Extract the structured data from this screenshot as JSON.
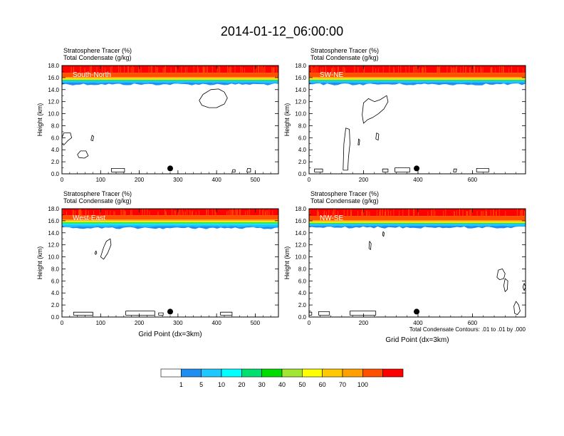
{
  "figure": {
    "title": "2014-01-12_06:00:00",
    "footnote": "Total Condensate Contours: .01 to .01 by .000"
  },
  "panel_labels": {
    "left_title": "Stratosphere Tracer   (%)",
    "right_title": "Total Condensate   (g/kg)"
  },
  "colorbar": {
    "colors": [
      "#ffffff",
      "#1e8ff0",
      "#1ec8ff",
      "#00ffff",
      "#00e070",
      "#00dc00",
      "#a0e632",
      "#ffff00",
      "#ffc800",
      "#ffa000",
      "#ff5000",
      "#ff0000"
    ],
    "labels": [
      "1",
      "5",
      "10",
      "20",
      "30",
      "40",
      "50",
      "60",
      "70",
      "100"
    ]
  },
  "chart_data": [
    {
      "type": "heatmap",
      "title": "South-North",
      "title_lines": [
        "Stratosphere Tracer   (%)",
        "Total Condensate   (g/kg)"
      ],
      "xlabel": "",
      "ylabel": "Height (km)",
      "xlim": [
        0,
        560
      ],
      "ylim": [
        0,
        18
      ],
      "xticks": [
        0,
        100,
        200,
        300,
        400,
        500
      ],
      "yticks": [
        0.0,
        2.0,
        4.0,
        6.0,
        8.0,
        10.0,
        12.0,
        14.0,
        16.0,
        18.0
      ],
      "ytick_labels": [
        "0.0",
        "2.0",
        "4.0",
        "6.0",
        "8.0",
        "10.0",
        "12.0",
        "14.0",
        "16.0",
        "18.0"
      ],
      "tracer_top_km": 15.9,
      "tracer_base_km": 15.2,
      "marker": {
        "x": 280,
        "y": 0.9
      },
      "contours": [
        [
          [
            355,
            12.2
          ],
          [
            365,
            13.2
          ],
          [
            385,
            14.0
          ],
          [
            405,
            14.1
          ],
          [
            420,
            13.6
          ],
          [
            428,
            12.6
          ],
          [
            420,
            11.6
          ],
          [
            400,
            11.0
          ],
          [
            380,
            11.0
          ],
          [
            362,
            11.4
          ],
          [
            355,
            12.2
          ]
        ],
        [
          [
            0,
            6.0
          ],
          [
            5,
            6.8
          ],
          [
            22,
            6.8
          ],
          [
            25,
            6.0
          ],
          [
            15,
            5.5
          ],
          [
            5,
            4.8
          ],
          [
            0,
            5.0
          ]
        ],
        [
          [
            40,
            3.2
          ],
          [
            48,
            3.8
          ],
          [
            62,
            3.8
          ],
          [
            68,
            3.0
          ],
          [
            58,
            2.6
          ],
          [
            44,
            2.7
          ],
          [
            40,
            3.2
          ]
        ],
        [
          [
            75,
            5.6
          ],
          [
            78,
            6.4
          ],
          [
            82,
            6.2
          ],
          [
            80,
            5.5
          ],
          [
            75,
            5.6
          ]
        ],
        [
          [
            128,
            0.3
          ],
          [
            128,
            0.9
          ],
          [
            162,
            0.9
          ],
          [
            162,
            0.3
          ],
          [
            128,
            0.3
          ]
        ],
        [
          [
            440,
            0.3
          ],
          [
            442,
            0.7
          ],
          [
            448,
            0.7
          ],
          [
            448,
            0.3
          ],
          [
            440,
            0.3
          ]
        ],
        [
          [
            478,
            0.3
          ],
          [
            480,
            0.9
          ],
          [
            488,
            0.9
          ],
          [
            488,
            0.3
          ],
          [
            478,
            0.3
          ]
        ]
      ]
    },
    {
      "type": "heatmap",
      "title": "SW-NE",
      "title_lines": [
        "Stratosphere Tracer   (%)",
        "Total Condensate   (g/kg)"
      ],
      "xlabel": "",
      "ylabel": "Height (km)",
      "xlim": [
        0,
        795
      ],
      "ylim": [
        0,
        18
      ],
      "xticks": [
        0,
        200,
        400,
        600
      ],
      "yticks": [
        0.0,
        2.0,
        4.0,
        6.0,
        8.0,
        10.0,
        12.0,
        14.0,
        16.0,
        18.0
      ],
      "ytick_labels": [
        "0.0",
        "2.0",
        "4.0",
        "6.0",
        "8.0",
        "10.0",
        "12.0",
        "14.0",
        "16.0",
        "18.0"
      ],
      "tracer_top_km": 15.9,
      "tracer_base_km": 15.2,
      "marker": {
        "x": 395,
        "y": 0.9
      },
      "contours": [
        [
          [
            195,
            9.8
          ],
          [
            200,
            11.8
          ],
          [
            218,
            12.5
          ],
          [
            240,
            12.0
          ],
          [
            260,
            12.3
          ],
          [
            285,
            13.0
          ],
          [
            290,
            12.0
          ],
          [
            275,
            10.8
          ],
          [
            255,
            10.0
          ],
          [
            235,
            9.4
          ],
          [
            215,
            9.0
          ],
          [
            200,
            8.4
          ],
          [
            195,
            9.8
          ]
        ],
        [
          [
            125,
            0.6
          ],
          [
            128,
            5.0
          ],
          [
            135,
            7.6
          ],
          [
            148,
            7.4
          ],
          [
            150,
            5.0
          ],
          [
            145,
            2.8
          ],
          [
            142,
            0.6
          ],
          [
            125,
            0.6
          ]
        ],
        [
          [
            245,
            5.8
          ],
          [
            248,
            6.8
          ],
          [
            256,
            6.6
          ],
          [
            254,
            5.6
          ],
          [
            245,
            5.8
          ]
        ],
        [
          [
            180,
            4.8
          ],
          [
            182,
            5.8
          ],
          [
            186,
            5.6
          ],
          [
            184,
            4.8
          ],
          [
            180,
            4.8
          ]
        ],
        [
          [
            20,
            0.3
          ],
          [
            20,
            0.8
          ],
          [
            50,
            0.8
          ],
          [
            50,
            0.3
          ],
          [
            20,
            0.3
          ]
        ],
        [
          [
            270,
            0.3
          ],
          [
            270,
            0.8
          ],
          [
            290,
            0.8
          ],
          [
            290,
            0.3
          ],
          [
            270,
            0.3
          ]
        ],
        [
          [
            315,
            0.3
          ],
          [
            315,
            1.0
          ],
          [
            370,
            1.0
          ],
          [
            370,
            0.3
          ],
          [
            315,
            0.3
          ]
        ],
        [
          [
            530,
            0.3
          ],
          [
            532,
            0.8
          ],
          [
            542,
            0.8
          ],
          [
            540,
            0.3
          ],
          [
            530,
            0.3
          ]
        ],
        [
          [
            615,
            0.3
          ],
          [
            615,
            0.9
          ],
          [
            660,
            0.9
          ],
          [
            660,
            0.3
          ],
          [
            615,
            0.3
          ]
        ]
      ]
    },
    {
      "type": "heatmap",
      "title": "West-East",
      "title_lines": [
        "Stratosphere Tracer   (%)",
        "Total Condensate   (g/kg)"
      ],
      "xlabel": "Grid Point (dx=3km)",
      "ylabel": "Height (km)",
      "xlim": [
        0,
        560
      ],
      "ylim": [
        0,
        18
      ],
      "xticks": [
        0,
        100,
        200,
        300,
        400,
        500
      ],
      "yticks": [
        0.0,
        2.0,
        4.0,
        6.0,
        8.0,
        10.0,
        12.0,
        14.0,
        16.0,
        18.0
      ],
      "ytick_labels": [
        "0.0",
        "2.0",
        "4.0",
        "6.0",
        "8.0",
        "10.0",
        "12.0",
        "14.0",
        "16.0",
        "18.0"
      ],
      "tracer_top_km": 16.0,
      "tracer_base_km": 15.1,
      "marker": {
        "x": 280,
        "y": 0.9
      },
      "contours": [
        [
          [
            100,
            10.0
          ],
          [
            108,
            11.6
          ],
          [
            115,
            12.6
          ],
          [
            125,
            13.0
          ],
          [
            127,
            12.0
          ],
          [
            118,
            10.6
          ],
          [
            108,
            9.6
          ],
          [
            100,
            10.0
          ]
        ],
        [
          [
            85,
            10.6
          ],
          [
            88,
            11.0
          ],
          [
            90,
            10.6
          ],
          [
            87,
            10.4
          ],
          [
            85,
            10.6
          ]
        ],
        [
          [
            30,
            0.3
          ],
          [
            30,
            0.8
          ],
          [
            80,
            0.8
          ],
          [
            80,
            0.3
          ],
          [
            30,
            0.3
          ]
        ],
        [
          [
            165,
            0.3
          ],
          [
            165,
            1.0
          ],
          [
            240,
            1.0
          ],
          [
            240,
            0.3
          ],
          [
            165,
            0.3
          ]
        ],
        [
          [
            250,
            0.3
          ],
          [
            250,
            0.7
          ],
          [
            262,
            0.7
          ],
          [
            262,
            0.3
          ],
          [
            250,
            0.3
          ]
        ],
        [
          [
            410,
            0.3
          ],
          [
            410,
            0.8
          ],
          [
            440,
            0.8
          ],
          [
            440,
            0.3
          ],
          [
            410,
            0.3
          ]
        ]
      ]
    },
    {
      "type": "heatmap",
      "title": "NW-SE",
      "title_lines": [
        "Stratosphere Tracer   (%)",
        "Total Condensate   (g/kg)"
      ],
      "xlabel": "Grid Point (dx=3km)",
      "ylabel": "Height (km)",
      "xlim": [
        0,
        795
      ],
      "ylim": [
        0,
        18
      ],
      "xticks": [
        0,
        200,
        400,
        600
      ],
      "yticks": [
        0.0,
        2.0,
        4.0,
        6.0,
        8.0,
        10.0,
        12.0,
        14.0,
        16.0,
        18.0
      ],
      "ytick_labels": [
        "0.0",
        "2.0",
        "4.0",
        "6.0",
        "8.0",
        "10.0",
        "12.0",
        "14.0",
        "16.0",
        "18.0"
      ],
      "tracer_top_km": 15.9,
      "tracer_base_km": 15.2,
      "marker": {
        "x": 395,
        "y": 0.9
      },
      "contours": [
        [
          [
            220,
            11.4
          ],
          [
            222,
            12.6
          ],
          [
            228,
            12.2
          ],
          [
            226,
            11.2
          ],
          [
            220,
            11.4
          ]
        ],
        [
          [
            270,
            13.6
          ],
          [
            272,
            14.2
          ],
          [
            276,
            14.0
          ],
          [
            274,
            13.4
          ],
          [
            270,
            13.6
          ]
        ],
        [
          [
            690,
            6.6
          ],
          [
            695,
            7.8
          ],
          [
            710,
            8.0
          ],
          [
            720,
            7.2
          ],
          [
            715,
            6.4
          ],
          [
            700,
            6.2
          ],
          [
            690,
            6.6
          ]
        ],
        [
          [
            715,
            5.2
          ],
          [
            720,
            6.4
          ],
          [
            730,
            6.0
          ],
          [
            728,
            4.6
          ],
          [
            720,
            4.2
          ],
          [
            715,
            5.2
          ]
        ],
        [
          [
            755,
            0.6
          ],
          [
            752,
            1.8
          ],
          [
            760,
            2.6
          ],
          [
            770,
            2.0
          ],
          [
            775,
            1.0
          ],
          [
            765,
            0.4
          ],
          [
            755,
            0.6
          ]
        ],
        [
          [
            785,
            5.0
          ],
          [
            790,
            5.6
          ],
          [
            795,
            5.0
          ],
          [
            790,
            4.4
          ],
          [
            785,
            5.0
          ]
        ],
        [
          [
            0,
            0.3
          ],
          [
            0,
            0.8
          ],
          [
            10,
            0.8
          ],
          [
            10,
            0.3
          ],
          [
            0,
            0.3
          ]
        ],
        [
          [
            35,
            0.3
          ],
          [
            35,
            0.9
          ],
          [
            75,
            0.9
          ],
          [
            75,
            0.3
          ],
          [
            35,
            0.3
          ]
        ],
        [
          [
            150,
            0.3
          ],
          [
            150,
            1.0
          ],
          [
            245,
            1.0
          ],
          [
            245,
            0.3
          ],
          [
            150,
            0.3
          ]
        ]
      ]
    }
  ]
}
